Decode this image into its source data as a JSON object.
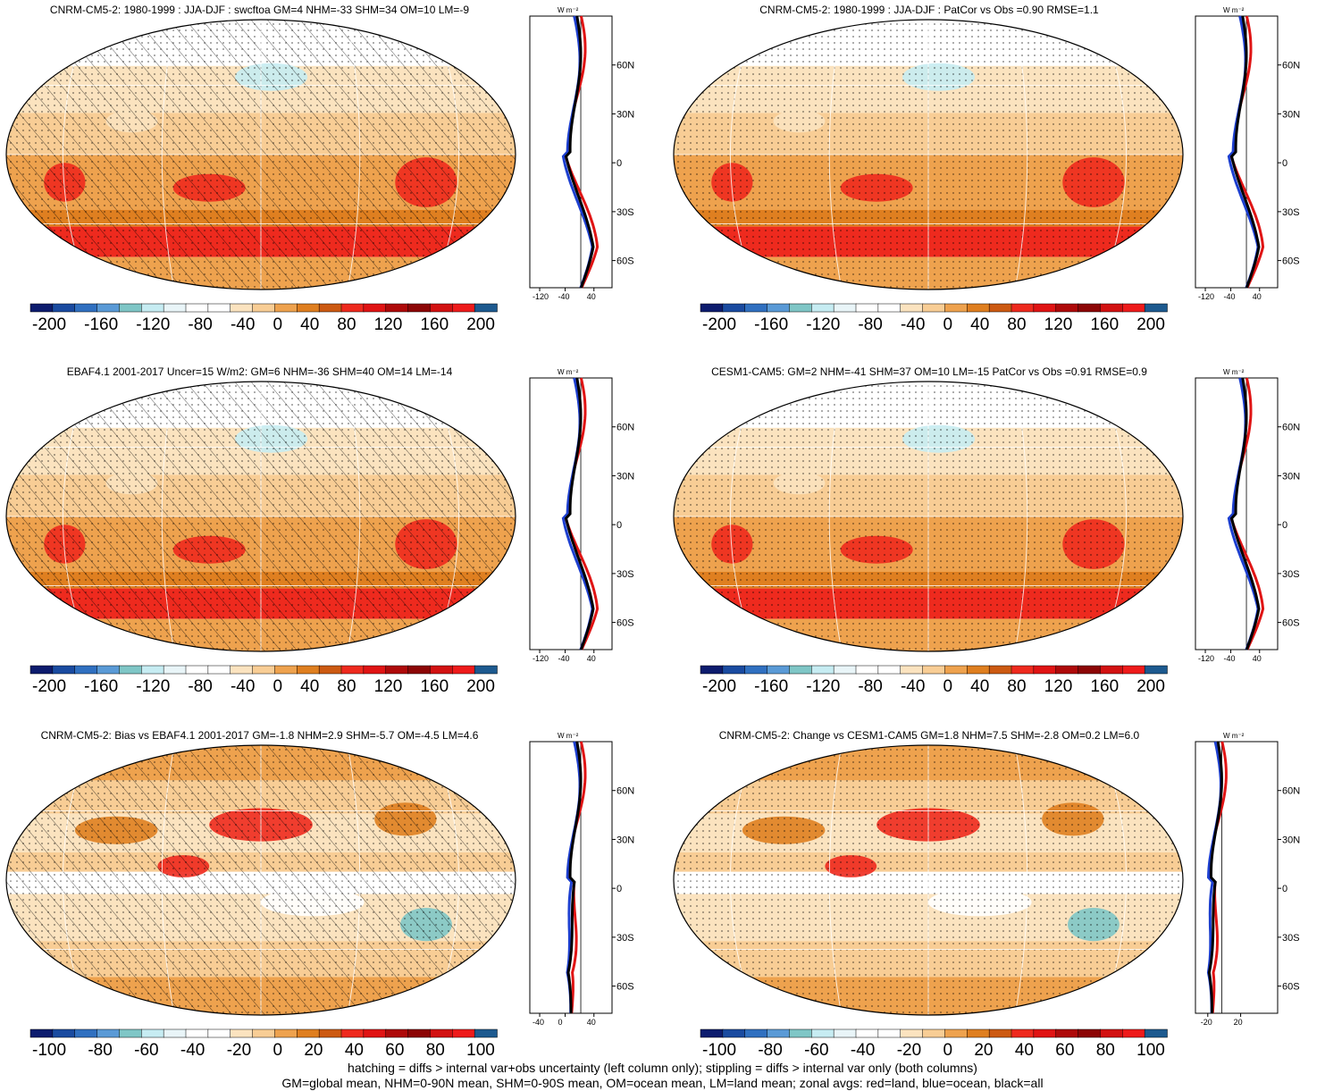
{
  "panels": [
    {
      "id": "p1",
      "title": "CNRM-CM5-2: 1980-1999 : JJA-DJF : swcftoa GM=4 NHM=-33 SHM=34 OM=10 LM=-9",
      "hatching": true,
      "colorbar": [
        "-200",
        "-160",
        "-120",
        "-80",
        "-40",
        "0",
        "40",
        "80",
        "120",
        "160",
        "200"
      ],
      "zonal": {
        "unit": "W m⁻²",
        "ticks": [
          "-120",
          "-40",
          "40"
        ],
        "lat_ticks": [
          "60N",
          "30N",
          "0",
          "30S",
          "60S"
        ]
      }
    },
    {
      "id": "p2",
      "title": "CNRM-CM5-2: 1980-1999 : JJA-DJF : PatCor vs Obs =0.90 RMSE=1.1",
      "hatching": false,
      "colorbar": [
        "-200",
        "-160",
        "-120",
        "-80",
        "-40",
        "0",
        "40",
        "80",
        "120",
        "160",
        "200"
      ],
      "zonal": {
        "unit": "W m⁻²",
        "ticks": [
          "-120",
          "-40",
          "40"
        ],
        "lat_ticks": [
          "60N",
          "30N",
          "0",
          "30S",
          "60S"
        ]
      }
    },
    {
      "id": "p3",
      "title": "EBAF4.1 2001-2017 Uncer=15 W/m2: GM=6 NHM=-36 SHM=40 OM=14 LM=-14",
      "hatching": true,
      "colorbar": [
        "-200",
        "-160",
        "-120",
        "-80",
        "-40",
        "0",
        "40",
        "80",
        "120",
        "160",
        "200"
      ],
      "zonal": {
        "unit": "W m⁻²",
        "ticks": [
          "-120",
          "-40",
          "40"
        ],
        "lat_ticks": [
          "60N",
          "30N",
          "0",
          "30S",
          "60S"
        ]
      }
    },
    {
      "id": "p4",
      "title": "CESM1-CAM5: GM=2 NHM=-41 SHM=37 OM=10 LM=-15 PatCor vs Obs =0.91 RMSE=0.9",
      "hatching": false,
      "colorbar": [
        "-200",
        "-160",
        "-120",
        "-80",
        "-40",
        "0",
        "40",
        "80",
        "120",
        "160",
        "200"
      ],
      "zonal": {
        "unit": "W m⁻²",
        "ticks": [
          "-120",
          "-40",
          "40"
        ],
        "lat_ticks": [
          "60N",
          "30N",
          "0",
          "30S",
          "60S"
        ]
      }
    },
    {
      "id": "p5",
      "title": "CNRM-CM5-2: Bias vs EBAF4.1 2001-2017 GM=-1.8 NHM=2.9 SHM=-5.7 OM=-4.5 LM=4.6",
      "hatching": true,
      "colorbar": [
        "-100",
        "-80",
        "-60",
        "-40",
        "-20",
        "0",
        "20",
        "40",
        "60",
        "80",
        "100"
      ],
      "zonal": {
        "unit": "W m⁻²",
        "ticks": [
          "-40",
          "0",
          "40"
        ],
        "lat_ticks": [
          "60N",
          "30N",
          "0",
          "30S",
          "60S"
        ]
      }
    },
    {
      "id": "p6",
      "title": "CNRM-CM5-2: Change vs CESM1-CAM5 GM=1.8 NHM=7.5 SHM=-2.8 OM=0.2 LM=6.0",
      "hatching": false,
      "colorbar": [
        "-100",
        "-80",
        "-60",
        "-40",
        "-20",
        "0",
        "20",
        "40",
        "60",
        "80",
        "100"
      ],
      "zonal": {
        "unit": "W m⁻²",
        "ticks": [
          "-20",
          "20"
        ],
        "lat_ticks": [
          "60N",
          "30N",
          "0",
          "30S",
          "60S"
        ]
      }
    }
  ],
  "palette": [
    "#0d1c6e",
    "#1a4ba0",
    "#3070c0",
    "#5a9ad6",
    "#7fc6c6",
    "#c6ecf2",
    "#e9f5f8",
    "#ffffff",
    "#ffffff",
    "#fbe3bf",
    "#f8cd95",
    "#eea24e",
    "#df7f20",
    "#cc5a12",
    "#ee2a1e",
    "#e01414",
    "#ae0a0a",
    "#8c0606",
    "#d21212",
    "#ee1b1b",
    "#1d5a8f"
  ],
  "footer": {
    "line1": "hatching = diffs > internal var+obs uncertainty (left column only); stippling = diffs > internal var only (both columns)",
    "line2": "GM=global mean, NHM=0-90N mean, SHM=0-90S mean, OM=ocean mean, LM=land mean; zonal avgs: red=land, blue=ocean, black=all"
  }
}
